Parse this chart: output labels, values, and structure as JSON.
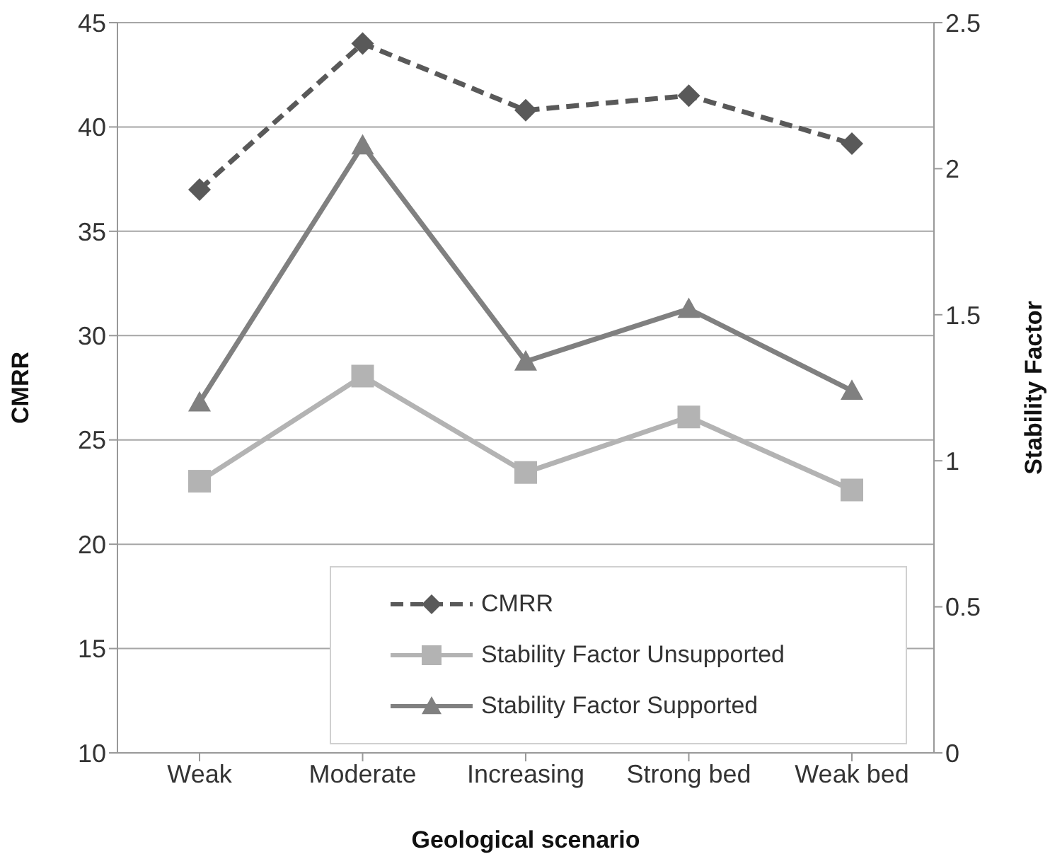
{
  "chart_data": {
    "type": "line",
    "xlabel": "Geological scenario",
    "ylabel": "CMRR",
    "y2label": "Stability Factor",
    "categories": [
      "Weak",
      "Moderate",
      "Increasing",
      "Strong bed",
      "Weak bed"
    ],
    "series": [
      {
        "name": "CMRR",
        "color": "#595959",
        "values": [
          37.0,
          44.0,
          40.8,
          41.5,
          39.2
        ],
        "marker": "diamond",
        "line_style": "dashed"
      },
      {
        "name": "Stability Factor Unsupported",
        "color": "#b3b3b3",
        "values": [
          0.93,
          1.29,
          0.96,
          1.15,
          0.9
        ],
        "axis": "y2",
        "marker": "square",
        "line_style": "solid"
      },
      {
        "name": "Stability Factor Supported",
        "color": "#808080",
        "values": [
          1.2,
          2.08,
          1.34,
          1.52,
          1.24
        ],
        "axis": "y2",
        "marker": "triangle",
        "line_style": "solid"
      }
    ],
    "ylim": [
      10,
      45
    ],
    "yticks": [
      10,
      15,
      20,
      25,
      30,
      35,
      40,
      45
    ],
    "y2lim": [
      0,
      2.5
    ],
    "y2ticks": [
      0,
      0.5,
      1,
      1.5,
      2,
      2.5
    ],
    "grid": "y",
    "legend": "bottom right"
  }
}
